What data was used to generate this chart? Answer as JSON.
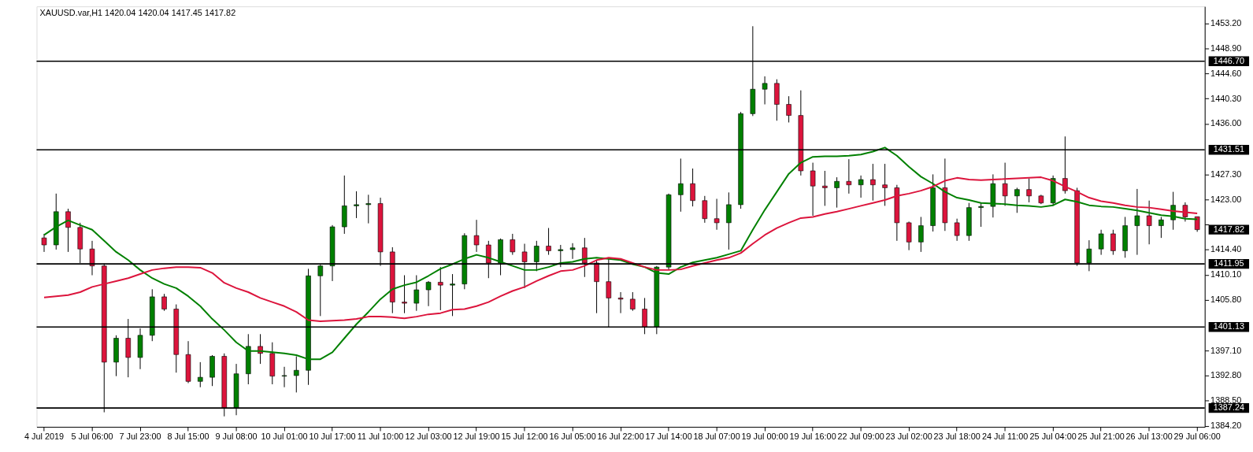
{
  "chart_data": {
    "type": "candlestick",
    "title": "XAUUSD.var,H1  1420.04 1420.04 1417.45 1417.82",
    "categories": [
      "4 Jul 2019",
      null,
      null,
      null,
      "5 Jul 06:00",
      null,
      null,
      null,
      "7 Jul 23:00",
      null,
      null,
      null,
      "8 Jul 15:00",
      null,
      null,
      null,
      "9 Jul 08:00",
      null,
      null,
      null,
      "10 Jul 01:00",
      null,
      null,
      null,
      "10 Jul 17:00",
      null,
      null,
      null,
      "11 Jul 10:00",
      null,
      null,
      null,
      "12 Jul 03:00",
      null,
      null,
      null,
      "12 Jul 19:00",
      null,
      null,
      null,
      "15 Jul 12:00",
      null,
      null,
      null,
      "16 Jul 05:00",
      null,
      null,
      null,
      "16 Jul 22:00",
      null,
      null,
      null,
      "17 Jul 14:00",
      null,
      null,
      null,
      "18 Jul 07:00",
      null,
      null,
      null,
      "19 Jul 00:00",
      null,
      null,
      null,
      "19 Jul 16:00",
      null,
      null,
      null,
      "22 Jul 09:00",
      null,
      null,
      null,
      "23 Jul 02:00",
      null,
      null,
      null,
      "23 Jul 18:00",
      null,
      null,
      null,
      "24 Jul 11:00",
      null,
      null,
      null,
      "25 Jul 04:00",
      null,
      null,
      null,
      "25 Jul 21:00",
      null,
      null,
      null,
      "26 Jul 13:00",
      null,
      null,
      null,
      "29 Jul 06:00"
    ],
    "ohlc": [
      [
        1416.4,
        1417.1,
        1414.0,
        1415.2
      ],
      [
        1415.2,
        1424.0,
        1414.4,
        1420.9
      ],
      [
        1420.9,
        1421.4,
        1414.0,
        1418.2
      ],
      [
        1418.2,
        1419.0,
        1412.1,
        1414.5
      ],
      [
        1414.5,
        1415.9,
        1410.0,
        1411.6
      ],
      [
        1411.6,
        1412.0,
        1386.5,
        1395.1
      ],
      [
        1395.1,
        1399.7,
        1392.7,
        1399.2
      ],
      [
        1399.2,
        1402.5,
        1392.5,
        1395.9
      ],
      [
        1395.9,
        1400.9,
        1393.9,
        1399.7
      ],
      [
        1399.7,
        1407.6,
        1398.7,
        1406.3
      ],
      [
        1406.3,
        1406.8,
        1403.9,
        1404.2
      ],
      [
        1404.2,
        1405.0,
        1393.3,
        1396.4
      ],
      [
        1396.4,
        1398.7,
        1391.5,
        1391.8
      ],
      [
        1391.8,
        1395.1,
        1390.8,
        1392.5
      ],
      [
        1392.5,
        1396.3,
        1391.0,
        1396.1
      ],
      [
        1396.1,
        1396.6,
        1385.8,
        1387.2
      ],
      [
        1387.2,
        1394.8,
        1386.0,
        1393.1
      ],
      [
        1393.1,
        1399.9,
        1391.3,
        1397.8
      ],
      [
        1397.8,
        1399.9,
        1394.8,
        1396.6
      ],
      [
        1396.6,
        1398.5,
        1391.3,
        1392.7
      ],
      [
        1392.7,
        1394.3,
        1390.8,
        1392.8
      ],
      [
        1392.8,
        1396.1,
        1389.9,
        1393.7
      ],
      [
        1393.7,
        1411.1,
        1391.2,
        1409.9
      ],
      [
        1409.9,
        1411.8,
        1403.0,
        1411.6
      ],
      [
        1411.6,
        1418.6,
        1409.0,
        1418.3
      ],
      [
        1418.3,
        1427.1,
        1417.1,
        1421.9
      ],
      [
        1421.9,
        1424.4,
        1419.8,
        1422.1
      ],
      [
        1422.1,
        1423.8,
        1418.9,
        1422.3
      ],
      [
        1422.3,
        1423.3,
        1411.6,
        1414.0
      ],
      [
        1414.0,
        1414.8,
        1403.5,
        1405.4
      ],
      [
        1405.4,
        1410.0,
        1403.5,
        1405.2
      ],
      [
        1405.2,
        1410.0,
        1403.9,
        1407.5
      ],
      [
        1407.5,
        1409.0,
        1404.7,
        1408.8
      ],
      [
        1408.8,
        1411.4,
        1404.0,
        1408.3
      ],
      [
        1408.3,
        1410.2,
        1403.0,
        1408.5
      ],
      [
        1408.5,
        1417.2,
        1407.6,
        1416.8
      ],
      [
        1416.8,
        1419.5,
        1414.0,
        1415.2
      ],
      [
        1415.2,
        1415.9,
        1409.5,
        1412.1
      ],
      [
        1412.1,
        1416.3,
        1410.0,
        1416.1
      ],
      [
        1416.1,
        1417.1,
        1413.5,
        1414.0
      ],
      [
        1414.0,
        1415.4,
        1407.8,
        1412.3
      ],
      [
        1412.3,
        1415.9,
        1410.7,
        1415.0
      ],
      [
        1415.0,
        1418.1,
        1413.5,
        1414.2
      ],
      [
        1414.2,
        1415.2,
        1411.4,
        1414.4
      ],
      [
        1414.4,
        1415.5,
        1412.8,
        1414.7
      ],
      [
        1414.7,
        1416.4,
        1409.7,
        1412.1
      ],
      [
        1412.1,
        1412.6,
        1403.5,
        1408.9
      ],
      [
        1408.9,
        1412.8,
        1401.1,
        1406.1
      ],
      [
        1406.1,
        1407.1,
        1403.5,
        1405.9
      ],
      [
        1405.9,
        1407.1,
        1403.9,
        1404.2
      ],
      [
        1404.2,
        1406.1,
        1399.9,
        1401.1
      ],
      [
        1401.1,
        1411.6,
        1399.9,
        1411.4
      ],
      [
        1411.4,
        1424.0,
        1410.9,
        1423.8
      ],
      [
        1423.8,
        1430.0,
        1420.9,
        1425.7
      ],
      [
        1425.7,
        1428.3,
        1421.8,
        1422.8
      ],
      [
        1422.8,
        1423.6,
        1419.0,
        1419.7
      ],
      [
        1419.7,
        1423.1,
        1417.8,
        1419.0
      ],
      [
        1419.0,
        1424.2,
        1414.4,
        1422.1
      ],
      [
        1422.1,
        1438.0,
        1421.4,
        1437.7
      ],
      [
        1437.7,
        1452.7,
        1437.3,
        1441.9
      ],
      [
        1441.9,
        1444.1,
        1439.3,
        1442.9
      ],
      [
        1442.9,
        1443.6,
        1436.5,
        1439.3
      ],
      [
        1439.3,
        1440.7,
        1436.2,
        1437.4
      ],
      [
        1437.4,
        1441.7,
        1427.1,
        1427.9
      ],
      [
        1427.9,
        1429.3,
        1420.2,
        1425.3
      ],
      [
        1425.3,
        1427.9,
        1421.9,
        1425.0
      ],
      [
        1425.0,
        1426.8,
        1421.6,
        1426.1
      ],
      [
        1426.1,
        1429.9,
        1424.0,
        1425.5
      ],
      [
        1425.5,
        1427.1,
        1423.3,
        1426.4
      ],
      [
        1426.4,
        1429.1,
        1422.8,
        1425.5
      ],
      [
        1425.5,
        1429.1,
        1421.9,
        1425.0
      ],
      [
        1425.0,
        1425.5,
        1415.9,
        1419.0
      ],
      [
        1419.0,
        1419.2,
        1414.3,
        1415.7
      ],
      [
        1415.7,
        1420.0,
        1414.0,
        1418.5
      ],
      [
        1418.5,
        1427.3,
        1417.5,
        1425.0
      ],
      [
        1425.0,
        1430.0,
        1417.6,
        1419.0
      ],
      [
        1419.0,
        1419.7,
        1415.9,
        1416.8
      ],
      [
        1416.8,
        1422.4,
        1415.9,
        1421.6
      ],
      [
        1421.6,
        1422.4,
        1418.3,
        1421.8
      ],
      [
        1421.8,
        1427.3,
        1419.9,
        1425.7
      ],
      [
        1425.7,
        1429.3,
        1421.9,
        1423.6
      ],
      [
        1423.6,
        1425.0,
        1420.7,
        1424.7
      ],
      [
        1424.7,
        1426.6,
        1422.5,
        1423.6
      ],
      [
        1423.6,
        1423.8,
        1422.2,
        1422.4
      ],
      [
        1422.4,
        1427.1,
        1421.9,
        1426.6
      ],
      [
        1426.6,
        1433.8,
        1424.0,
        1424.5
      ],
      [
        1424.5,
        1425.0,
        1411.6,
        1412.1
      ],
      [
        1412.1,
        1416.0,
        1410.7,
        1414.5
      ],
      [
        1414.5,
        1417.8,
        1413.5,
        1417.1
      ],
      [
        1417.1,
        1417.8,
        1413.5,
        1414.2
      ],
      [
        1414.2,
        1420.0,
        1413.0,
        1418.5
      ],
      [
        1418.5,
        1424.8,
        1413.5,
        1420.2
      ],
      [
        1420.2,
        1422.8,
        1415.3,
        1418.5
      ],
      [
        1418.5,
        1420.0,
        1416.4,
        1419.5
      ],
      [
        1419.5,
        1424.3,
        1417.8,
        1422.0
      ],
      [
        1422.0,
        1422.5,
        1419.2,
        1420.0
      ],
      [
        1420.04,
        1420.04,
        1417.45,
        1417.82
      ]
    ],
    "colors": [
      "#dc143c",
      "#008000",
      "#dc143c",
      "#dc143c",
      "#dc143c",
      "#dc143c",
      "#008000",
      "#dc143c",
      "#008000",
      "#008000",
      "#dc143c",
      "#dc143c",
      "#dc143c",
      "#008000",
      "#008000",
      "#dc143c",
      "#008000",
      "#008000",
      "#dc143c",
      "#dc143c",
      "#008000",
      "#008000",
      "#008000",
      "#008000",
      "#008000",
      "#008000",
      "#008000",
      "#008000",
      "#dc143c",
      "#dc143c",
      "#dc143c",
      "#008000",
      "#008000",
      "#dc143c",
      "#008000",
      "#008000",
      "#dc143c",
      "#dc143c",
      "#008000",
      "#dc143c",
      "#dc143c",
      "#008000",
      "#dc143c",
      "#008000",
      "#008000",
      "#dc143c",
      "#dc143c",
      "#dc143c",
      "#dc143c",
      "#dc143c",
      "#dc143c",
      "#008000",
      "#008000",
      "#008000",
      "#dc143c",
      "#dc143c",
      "#dc143c",
      "#008000",
      "#008000",
      "#008000",
      "#008000",
      "#dc143c",
      "#dc143c",
      "#dc143c",
      "#dc143c",
      "#dc143c",
      "#008000",
      "#dc143c",
      "#008000",
      "#dc143c",
      "#dc143c",
      "#dc143c",
      "#dc143c",
      "#008000",
      "#008000",
      "#dc143c",
      "#dc143c",
      "#008000",
      "#008000",
      "#008000",
      "#dc143c",
      "#008000",
      "#dc143c",
      "#dc143c",
      "#008000",
      "#dc143c",
      "#dc143c",
      "#008000",
      "#008000",
      "#dc143c",
      "#008000",
      "#008000",
      "#dc143c",
      "#008000",
      "#008000",
      "#dc143c",
      "#dc143c"
    ],
    "series": [
      {
        "type": "line",
        "color": "#008000",
        "values": [
          1416.9,
          1418.3,
          1419.4,
          1418.6,
          1417.8,
          1415.9,
          1414.0,
          1412.6,
          1410.9,
          1409.5,
          1408.5,
          1407.8,
          1406.4,
          1404.7,
          1402.5,
          1400.6,
          1398.5,
          1397.0,
          1397.0,
          1396.8,
          1396.6,
          1396.3,
          1395.6,
          1395.6,
          1396.8,
          1399.2,
          1401.6,
          1403.7,
          1405.9,
          1407.6,
          1408.3,
          1408.8,
          1409.9,
          1411.1,
          1411.9,
          1412.8,
          1413.5,
          1413.0,
          1412.3,
          1411.6,
          1410.9,
          1410.9,
          1411.4,
          1412.1,
          1412.3,
          1412.8,
          1413.0,
          1412.8,
          1412.6,
          1411.9,
          1411.4,
          1410.4,
          1410.2,
          1411.4,
          1412.2,
          1412.6,
          1413.0,
          1413.6,
          1414.2,
          1417.8,
          1421.2,
          1424.3,
          1427.4,
          1429.3,
          1430.3,
          1430.4,
          1430.4,
          1430.5,
          1430.7,
          1431.2,
          1431.9,
          1430.5,
          1428.6,
          1426.9,
          1425.7,
          1424.3,
          1423.3,
          1422.9,
          1422.4,
          1422.3,
          1422.2,
          1422.0,
          1421.9,
          1421.7,
          1422.0,
          1423.0,
          1422.6,
          1422.0,
          1421.8,
          1421.7,
          1421.4,
          1421.1,
          1420.7,
          1420.3,
          1420.1,
          1419.7,
          1419.6
        ]
      },
      {
        "type": "line",
        "color": "#dc143c",
        "values": [
          1406.2,
          1406.4,
          1406.6,
          1407.1,
          1408.0,
          1408.5,
          1409.0,
          1409.5,
          1410.2,
          1410.9,
          1411.2,
          1411.4,
          1411.4,
          1411.3,
          1410.4,
          1408.7,
          1407.8,
          1407.1,
          1406.1,
          1405.4,
          1404.7,
          1403.7,
          1402.3,
          1402.1,
          1402.2,
          1402.3,
          1402.5,
          1402.9,
          1402.9,
          1402.8,
          1402.6,
          1402.9,
          1403.3,
          1403.5,
          1404.1,
          1404.2,
          1404.7,
          1405.4,
          1406.4,
          1407.3,
          1408.0,
          1409.0,
          1409.9,
          1410.7,
          1410.9,
          1411.6,
          1412.6,
          1413.0,
          1412.8,
          1412.1,
          1411.4,
          1410.9,
          1410.9,
          1411.0,
          1411.6,
          1412.1,
          1412.6,
          1413.0,
          1413.8,
          1415.4,
          1416.9,
          1418.1,
          1419.0,
          1419.8,
          1420.0,
          1420.5,
          1420.9,
          1421.4,
          1421.9,
          1422.4,
          1422.9,
          1423.6,
          1424.0,
          1424.5,
          1425.2,
          1426.2,
          1426.7,
          1426.4,
          1426.3,
          1426.4,
          1426.5,
          1426.6,
          1426.7,
          1426.8,
          1426.2,
          1425.2,
          1424.3,
          1423.3,
          1422.7,
          1422.4,
          1422.0,
          1421.7,
          1421.6,
          1421.3,
          1421.0,
          1420.8,
          1420.6
        ]
      }
    ],
    "ylim": [
      1384.0,
      1456.1
    ],
    "yticks": [
      {
        "value": 1384.2,
        "label": "1384.20"
      },
      {
        "value": 1388.5,
        "label": "1388.50"
      },
      {
        "value": 1392.8,
        "label": "1392.80"
      },
      {
        "value": 1397.1,
        "label": "1397.10"
      },
      {
        "value": 1405.8,
        "label": "1405.80"
      },
      {
        "value": 1410.1,
        "label": "1410.10"
      },
      {
        "value": 1414.4,
        "label": "1414.40"
      },
      {
        "value": 1418.7,
        "label": null
      },
      {
        "value": 1423.0,
        "label": "1423.00"
      },
      {
        "value": 1427.3,
        "label": "1427.30"
      },
      {
        "value": 1436.0,
        "label": "1436.00"
      },
      {
        "value": 1440.3,
        "label": "1440.30"
      },
      {
        "value": 1444.6,
        "label": "1444.60"
      },
      {
        "value": 1448.9,
        "label": "1448.90"
      },
      {
        "value": 1453.2,
        "label": "1453.20"
      }
    ],
    "ref_lines": [
      {
        "axis": "y",
        "value": 1446.7,
        "label": "1446.70",
        "color": "#000000"
      },
      {
        "axis": "y",
        "value": 1431.51,
        "label": "1431.51",
        "color": "#000000"
      },
      {
        "axis": "y",
        "value": 1411.95,
        "label": "1411.95",
        "color": "#000000"
      },
      {
        "axis": "y",
        "value": 1401.13,
        "label": "1401.13",
        "color": "#000000"
      },
      {
        "axis": "y",
        "value": 1387.24,
        "label": "1387.24",
        "color": "#000000"
      }
    ],
    "annotations": [
      "1417.82"
    ],
    "grid": false
  }
}
